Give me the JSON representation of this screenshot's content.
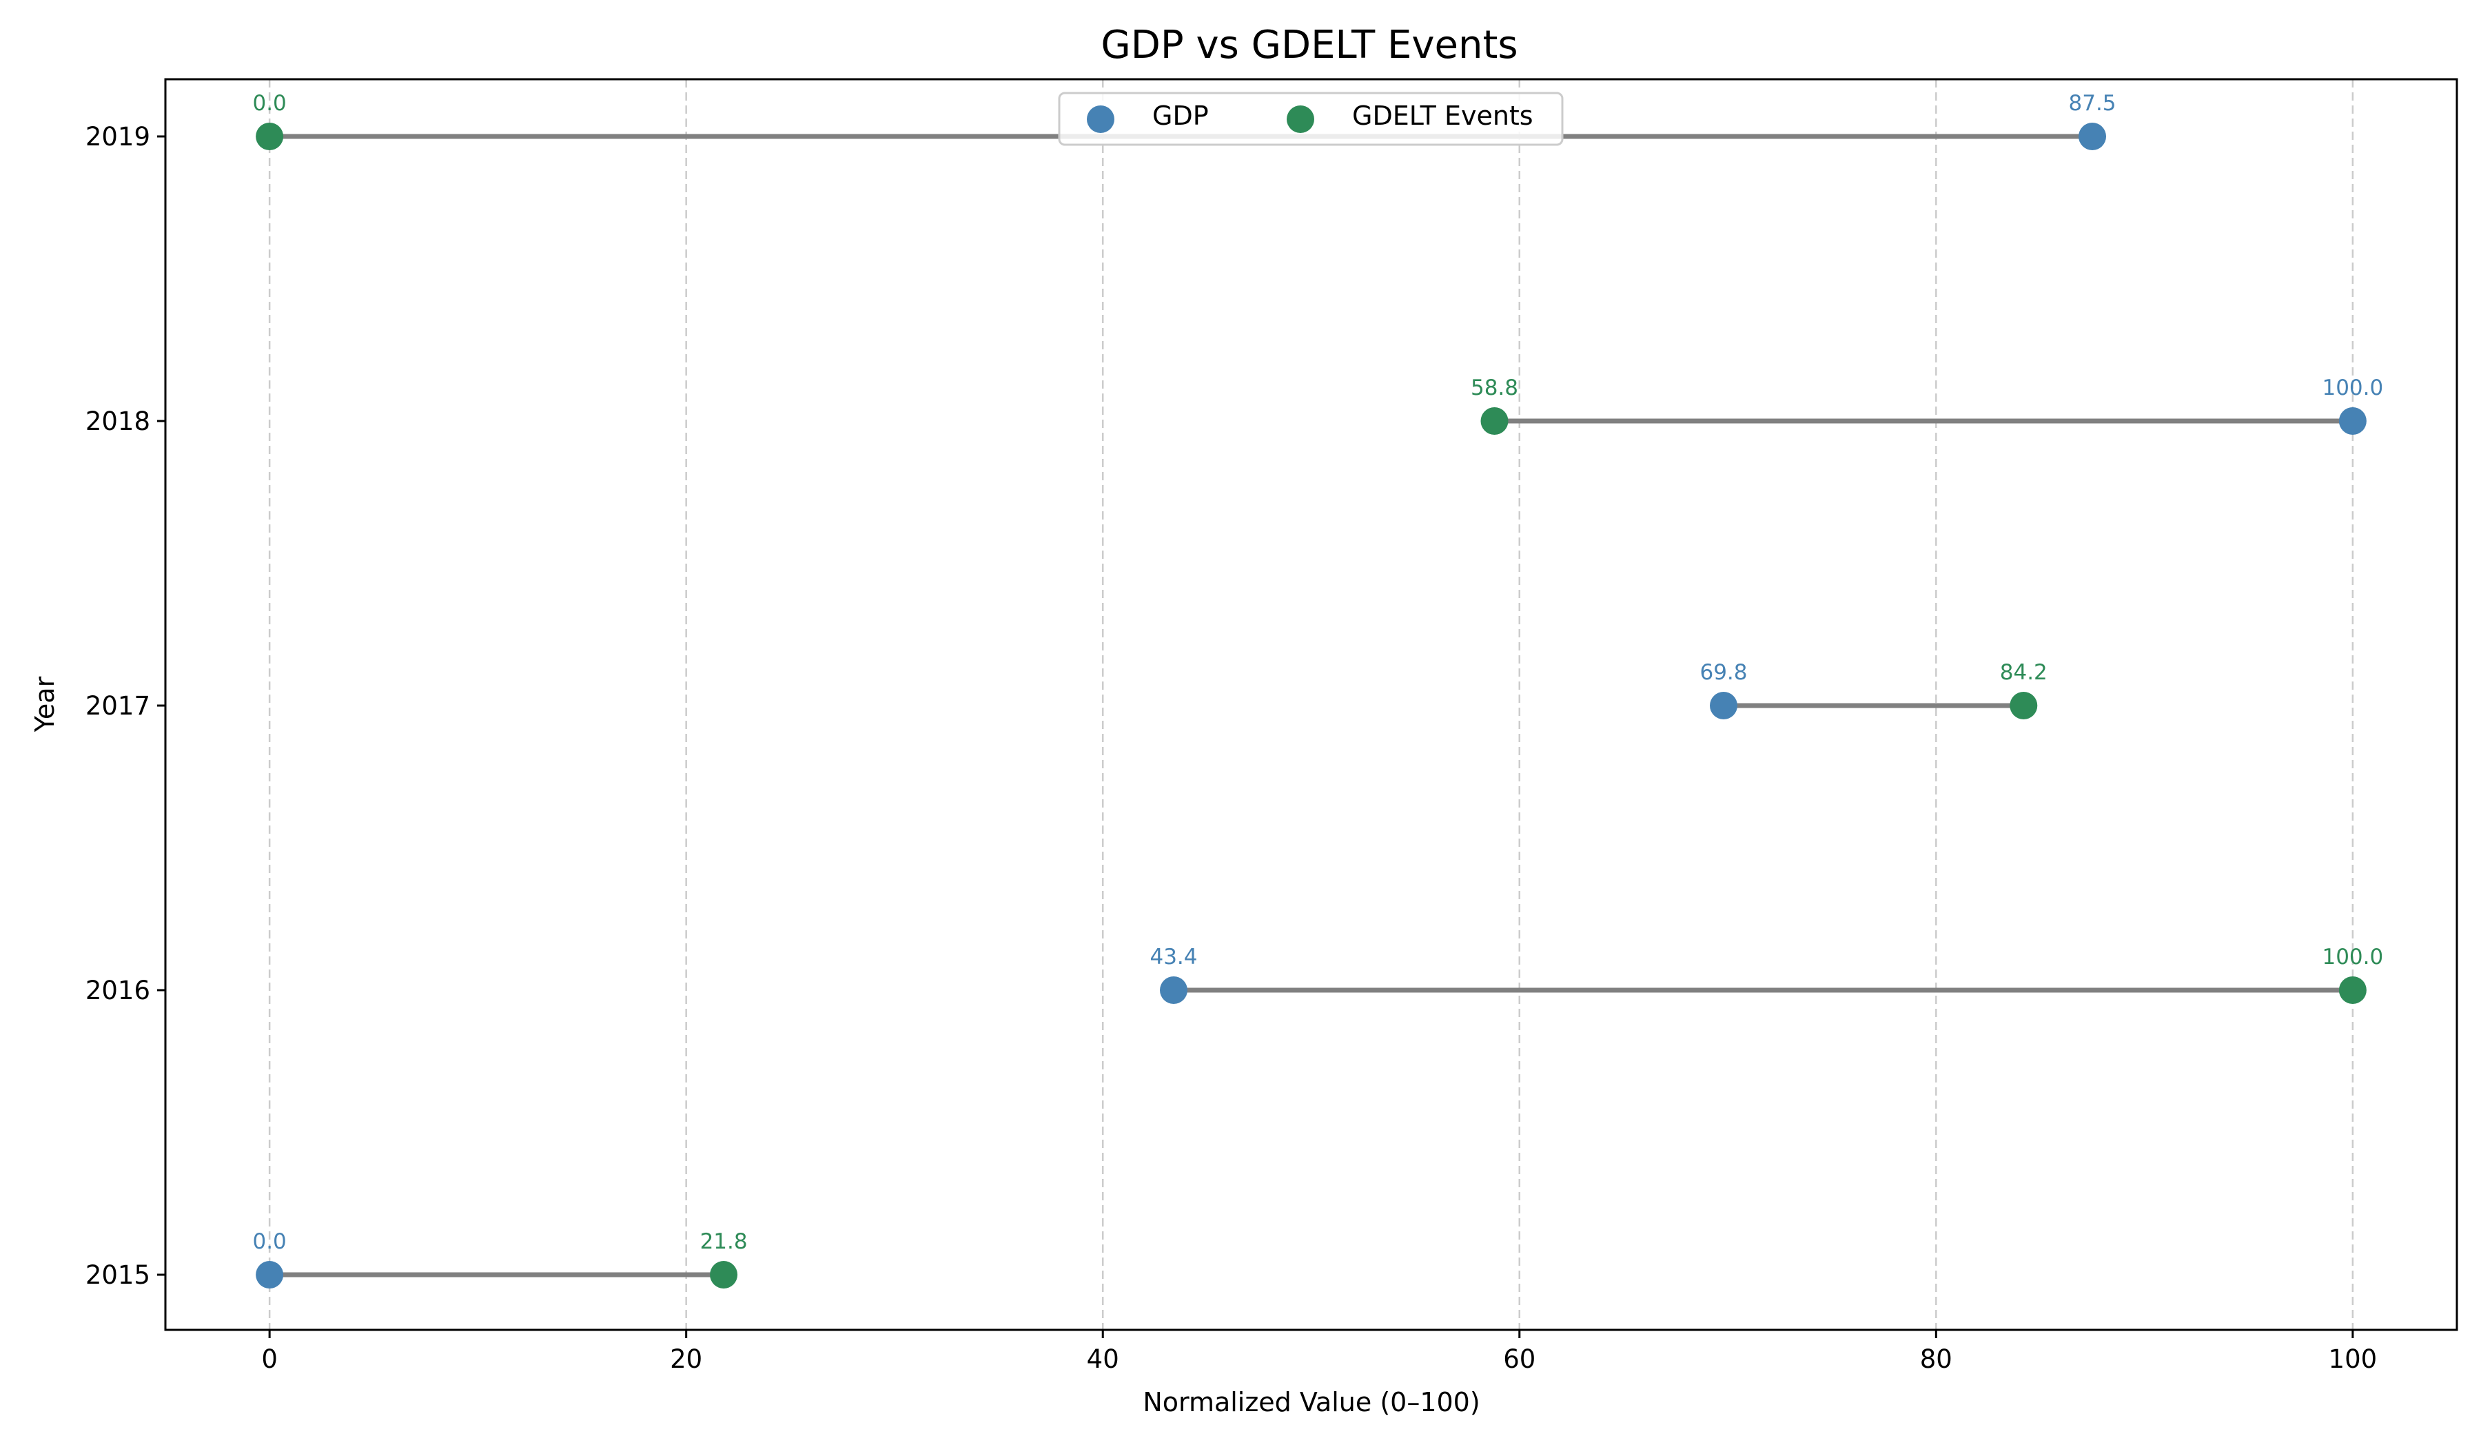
{
  "chart_data": {
    "type": "dumbbell",
    "title": "GDP vs GDELT Events",
    "xlabel": "Normalized Value (0–100)",
    "ylabel": "Year",
    "xlim": [
      -5,
      105
    ],
    "xticks": [
      0,
      20,
      40,
      60,
      80,
      100
    ],
    "categories": [
      "2015",
      "2016",
      "2017",
      "2018",
      "2019"
    ],
    "series": [
      {
        "name": "GDP",
        "color": "#4682b4",
        "values": [
          0.0,
          43.4,
          69.8,
          100.0,
          87.5
        ],
        "labels": [
          "0.0",
          "43.4",
          "69.8",
          "100.0",
          "87.5"
        ]
      },
      {
        "name": "GDELT Events",
        "color": "#2e8b57",
        "values": [
          21.8,
          100.0,
          84.2,
          58.8,
          0.0
        ],
        "labels": [
          "21.8",
          "100.0",
          "84.2",
          "58.8",
          "0.0"
        ]
      }
    ],
    "connector_color": "#808080",
    "grid": "x-dashed",
    "legend_position": "upper center"
  }
}
